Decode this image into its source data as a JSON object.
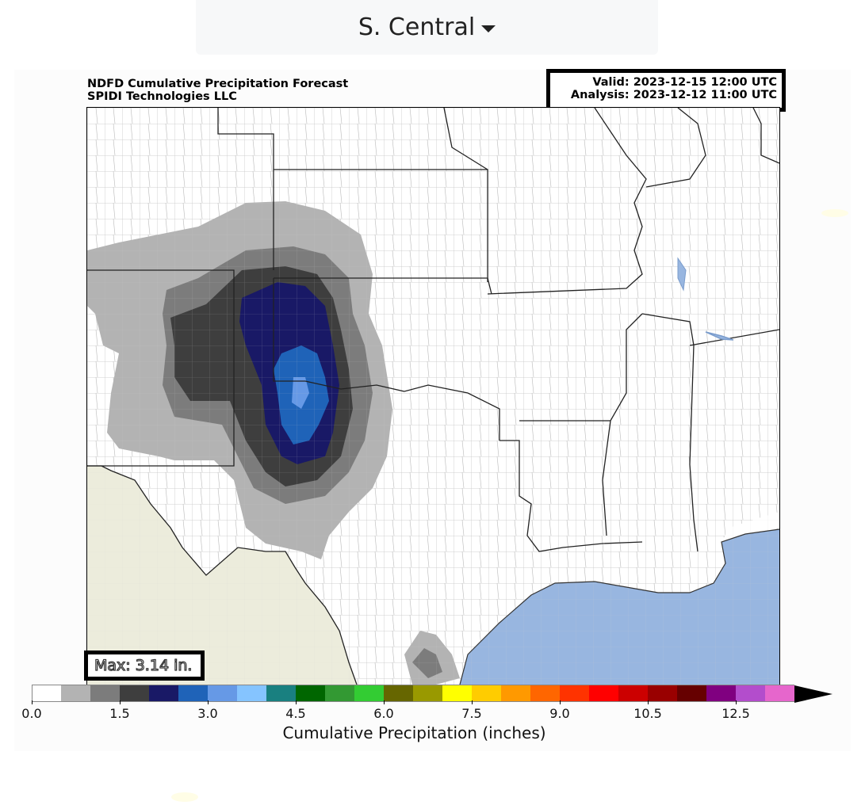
{
  "dropdown": {
    "selected": "S. Central"
  },
  "chart": {
    "title_line1": "NDFD Cumulative Precipitation Forecast",
    "title_line2": "SPIDI Technologies LLC",
    "valid": "Valid: 2023-12-15 12:00 UTC",
    "analysis": "Analysis: 2023-12-12 11:00 UTC",
    "max_label": "Max: 3.14 in.",
    "colorbar_title": "Cumulative Precipitation (inches)"
  },
  "colorbar": {
    "ticks": [
      "0.0",
      "1.5",
      "3.0",
      "4.5",
      "6.0",
      "7.5",
      "9.0",
      "10.5",
      "12.5"
    ],
    "colors": [
      "#ffffff",
      "#b3b3b3",
      "#7c7c7c",
      "#3e3e3e",
      "#191966",
      "#1f63b8",
      "#6699e6",
      "#85c4ff",
      "#198080",
      "#006600",
      "#339933",
      "#33cc33",
      "#666600",
      "#999900",
      "#ffff00",
      "#ffcc00",
      "#ff9900",
      "#ff6600",
      "#ff3300",
      "#ff0000",
      "#cc0000",
      "#990000",
      "#660000",
      "#800080",
      "#b34dcc",
      "#e666cc"
    ],
    "extend_color": "#000000"
  },
  "map_colors": {
    "land": "#ffffff",
    "mexico": "#ececdc",
    "water": "#98b6e0",
    "county_lines": "#b8b8b8",
    "state_lines": "#222222"
  }
}
